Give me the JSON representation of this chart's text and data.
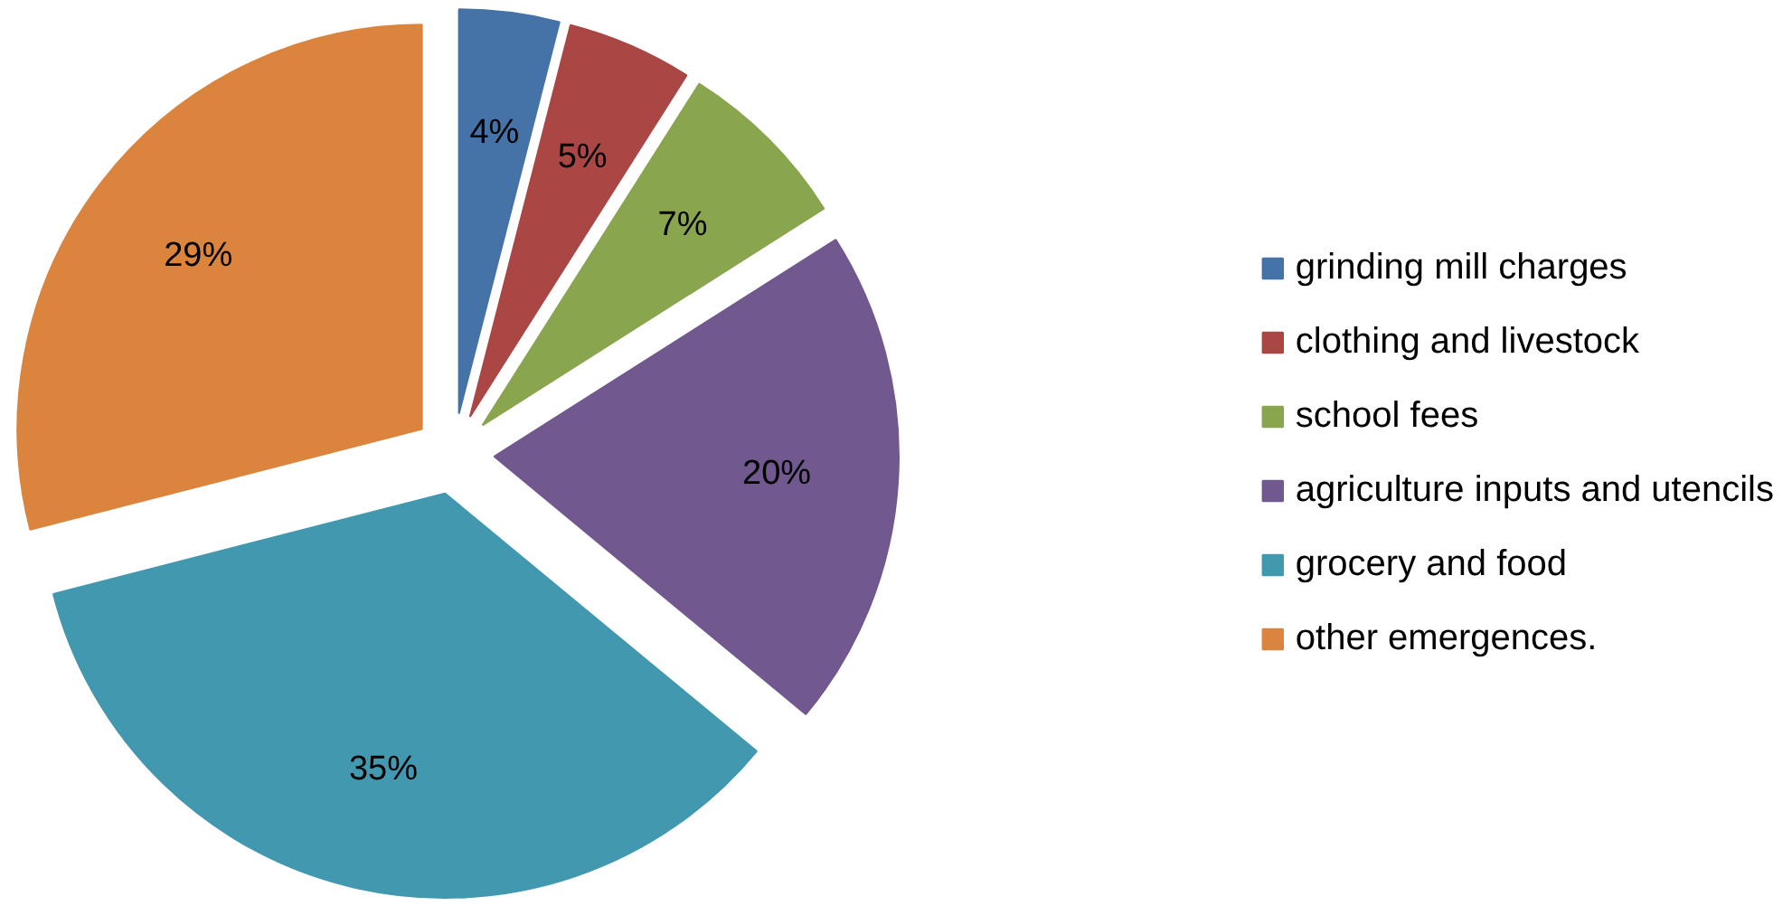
{
  "chart_data": {
    "type": "pie",
    "categories": [
      "grinding mill charges",
      "clothing and livestock",
      "school fees",
      "agriculture inputs and utencils",
      "grocery and food",
      "other emergences."
    ],
    "values": [
      4,
      5,
      7,
      20,
      35,
      29
    ],
    "value_labels": [
      "4%",
      "5%",
      "7%",
      "20%",
      "35%",
      "29%"
    ],
    "colors": [
      "#4572a7",
      "#aa4643",
      "#89a54e",
      "#71588f",
      "#4198af",
      "#db843d"
    ],
    "legend": "right"
  }
}
